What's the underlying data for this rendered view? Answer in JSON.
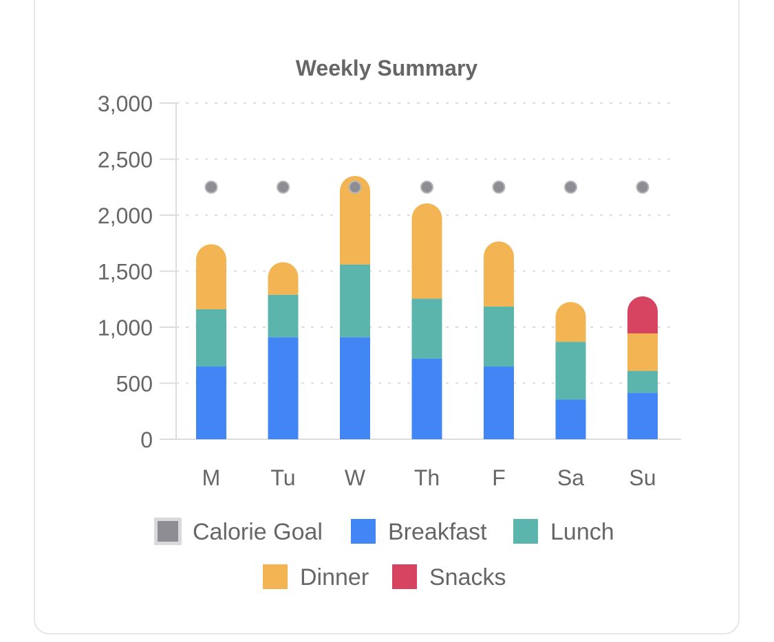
{
  "chart_data": {
    "type": "bar",
    "stacked": true,
    "title": "Weekly Summary",
    "categories": [
      "M",
      "Tu",
      "W",
      "Th",
      "F",
      "Sa",
      "Su"
    ],
    "ylim": [
      0,
      3000
    ],
    "yticks": [
      0,
      500,
      1000,
      1500,
      2000,
      2500,
      3000
    ],
    "ytick_labels": [
      "0",
      "500",
      "1,000",
      "1,500",
      "2,000",
      "2,500",
      "3,000"
    ],
    "grid": true,
    "series": [
      {
        "name": "Breakfast",
        "color": "#4285f4",
        "values": [
          650,
          910,
          910,
          720,
          650,
          355,
          415
        ]
      },
      {
        "name": "Lunch",
        "color": "#5bb5ad",
        "values": [
          510,
          380,
          650,
          535,
          535,
          515,
          195
        ]
      },
      {
        "name": "Dinner",
        "color": "#f3b454",
        "values": [
          580,
          290,
          790,
          850,
          580,
          355,
          335
        ]
      },
      {
        "name": "Snacks",
        "color": "#d74462",
        "values": [
          0,
          0,
          0,
          0,
          0,
          0,
          330
        ]
      }
    ],
    "line_series": {
      "name": "Calorie Goal",
      "color": "#8e8d93",
      "type": "scatter",
      "values": [
        2250,
        2250,
        2250,
        2250,
        2250,
        2250,
        2250
      ]
    },
    "legend": [
      "Calorie Goal",
      "Breakfast",
      "Lunch",
      "Dinner",
      "Snacks"
    ],
    "legend_position": "bottom"
  }
}
